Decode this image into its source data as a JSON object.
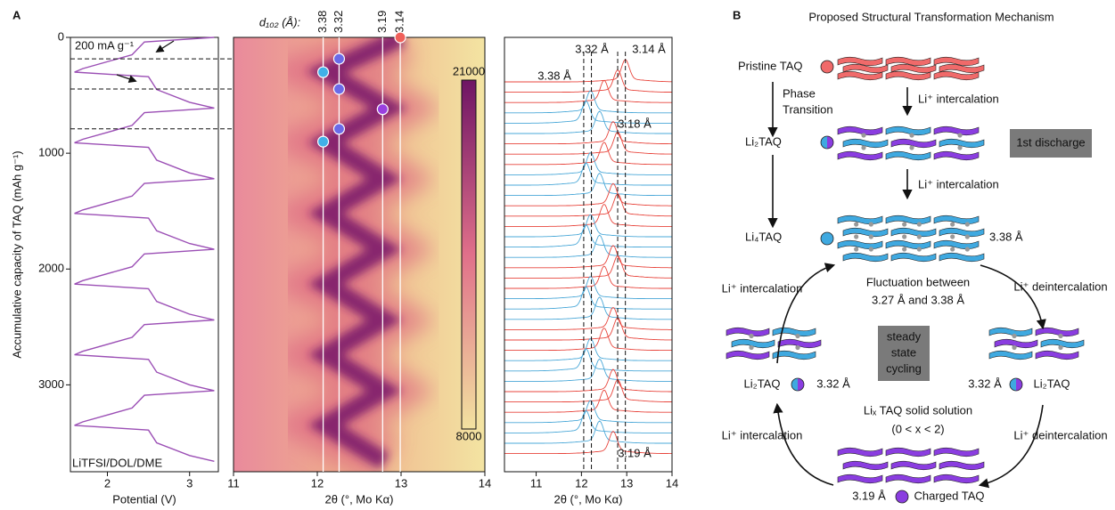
{
  "panel_labels": [
    "A",
    "B"
  ],
  "chart_data": [
    {
      "type": "line",
      "xlabel": "Potential (V)",
      "ylabel": "Accumulative capacity of TAQ (mAh g⁻¹)",
      "xlim": [
        1.55,
        3.35
      ],
      "xticks": [
        2,
        3
      ],
      "ylim": [
        0,
        3750
      ],
      "yticks": [
        0,
        1000,
        2000,
        3000
      ],
      "y_inverted": true,
      "color": "#9b4fb5",
      "x": [
        3.3,
        2.45,
        2.3,
        1.7,
        1.6,
        2.5,
        2.6,
        3.0,
        3.3,
        2.45,
        2.3,
        1.7,
        1.6,
        2.5,
        2.6,
        3.0,
        3.3,
        2.45,
        2.3,
        1.7,
        1.6,
        2.5,
        2.6,
        3.0,
        3.3,
        2.45,
        2.3,
        1.7,
        1.6,
        2.5,
        2.6,
        3.0,
        3.3,
        2.45,
        2.3,
        1.7,
        1.6,
        2.5,
        2.6,
        3.0,
        3.3,
        2.45,
        2.3,
        1.7,
        1.6,
        2.5,
        2.6,
        3.0,
        3.3
      ],
      "y": [
        0,
        40,
        150,
        270,
        300,
        340,
        450,
        560,
        610,
        650,
        760,
        880,
        910,
        950,
        1060,
        1170,
        1220,
        1260,
        1370,
        1490,
        1520,
        1560,
        1670,
        1780,
        1830,
        1870,
        1980,
        2100,
        2130,
        2170,
        2280,
        2390,
        2440,
        2480,
        2590,
        2710,
        2740,
        2780,
        2890,
        3000,
        3050,
        3090,
        3200,
        3320,
        3350,
        3390,
        3500,
        3610,
        3660
      ],
      "hlines": [
        185,
        446,
        790
      ],
      "annotations": [
        "200 mA g⁻¹",
        "LiTFSI/DOL/DME"
      ]
    },
    {
      "type": "heatmap",
      "title": "d₁₀₂ (Å):",
      "xlabel": "2θ (°, Mo Kα)",
      "xlim": [
        11,
        14
      ],
      "xticks": [
        11,
        12,
        13,
        14
      ],
      "ylim": [
        0,
        3750
      ],
      "y_inverted": true,
      "ridge": {
        "x": [
          13.0,
          12.1,
          12.85,
          12.1,
          12.8,
          12.1,
          12.8,
          12.1,
          12.8,
          12.1,
          12.8,
          12.1,
          12.8
        ],
        "y": [
          0,
          300,
          610,
          910,
          1220,
          1520,
          1830,
          2130,
          2440,
          2740,
          3050,
          3350,
          3660
        ]
      },
      "vlines": [
        {
          "value": 12.07,
          "label": "3.38"
        },
        {
          "value": 12.26,
          "label": "3.32"
        },
        {
          "value": 12.78,
          "label": "3.19"
        },
        {
          "value": 12.99,
          "label": "3.14"
        }
      ],
      "markers": {
        "x": [
          12.99,
          12.26,
          12.07,
          12.26,
          12.78,
          12.26,
          12.07
        ],
        "y": [
          0,
          185,
          300,
          446,
          620,
          790,
          900
        ],
        "colors": [
          "#f0605a",
          "#6a6ae8",
          "#40b0e8",
          "#6a6ae8",
          "#9a40e0",
          "#6a6ae8",
          "#40b0e8"
        ]
      },
      "colorbar": {
        "lim": [
          8000,
          21000
        ],
        "ticks": [
          8000,
          21000
        ],
        "colors": [
          "#f2e2a0",
          "#e0708a",
          "#6e1464"
        ]
      }
    },
    {
      "type": "waterfall",
      "xlabel": "2θ (°, Mo Kα)",
      "xlim": [
        10.3,
        14
      ],
      "xticks": [
        11,
        12,
        13,
        14
      ],
      "peaks": [
        12.97,
        12.8,
        12.5,
        12.2,
        12.1,
        12.4,
        12.7,
        12.8,
        12.5,
        12.2,
        12.1,
        12.4,
        12.7,
        12.8,
        12.5,
        12.2,
        12.1,
        12.4,
        12.7,
        12.8,
        12.5,
        12.2,
        12.1,
        12.4,
        12.7,
        12.8,
        12.5,
        12.2,
        12.1,
        12.4,
        12.7,
        12.8,
        12.5,
        12.2,
        12.1,
        12.4,
        12.7
      ],
      "colors": [
        "#e8453c",
        "#e8453c",
        "#e8453c",
        "#4aa8d8",
        "#4aa8d8",
        "#4aa8d8",
        "#e8453c",
        "#e8453c",
        "#e8453c",
        "#4aa8d8",
        "#4aa8d8",
        "#4aa8d8",
        "#e8453c",
        "#e8453c",
        "#e8453c",
        "#4aa8d8",
        "#4aa8d8",
        "#4aa8d8",
        "#e8453c",
        "#e8453c",
        "#e8453c",
        "#4aa8d8",
        "#4aa8d8",
        "#4aa8d8",
        "#e8453c",
        "#e8453c",
        "#e8453c",
        "#4aa8d8",
        "#4aa8d8",
        "#4aa8d8",
        "#e8453c",
        "#e8453c",
        "#e8453c",
        "#4aa8d8",
        "#4aa8d8",
        "#4aa8d8",
        "#e8453c"
      ],
      "vlines": [
        12.05,
        12.22,
        12.8,
        12.97
      ],
      "annotations": [
        "3.38 Å",
        "3.32 Å",
        "3.14 Å",
        "3.18 Å",
        "3.19 Å"
      ]
    }
  ],
  "diagram": {
    "title": "Proposed Structural Transformation Mechanism",
    "pristine": "Pristine TAQ",
    "phase_transition": [
      "Phase",
      "Transition"
    ],
    "li2": "Li₂TAQ",
    "li4": "Li₄TAQ",
    "first_discharge": "1st discharge",
    "intercalation": [
      "Li⁺ intercalation",
      "Li⁺ intercalation",
      "Li⁺ intercalation",
      "Li⁺ intercalation"
    ],
    "deintercalation": [
      "Li⁺ deintercalation",
      "Li⁺ deintercalation"
    ],
    "spacing_li4": "3.38 Å",
    "fluctuation": [
      "Fluctuation between",
      "3.27 Å and 3.38 Å"
    ],
    "steady_state": [
      "steady",
      "state",
      "cycling"
    ],
    "left_state": {
      "label": "Li₂TAQ",
      "spacing": "3.32 Å"
    },
    "right_state": {
      "label": "Li₂TAQ",
      "spacing": "3.32 Å"
    },
    "solid_solution": [
      "Liₓ TAQ solid solution",
      "(0 < x < 2)"
    ],
    "charged": {
      "label": "Charged TAQ",
      "spacing": "3.19 Å"
    }
  }
}
